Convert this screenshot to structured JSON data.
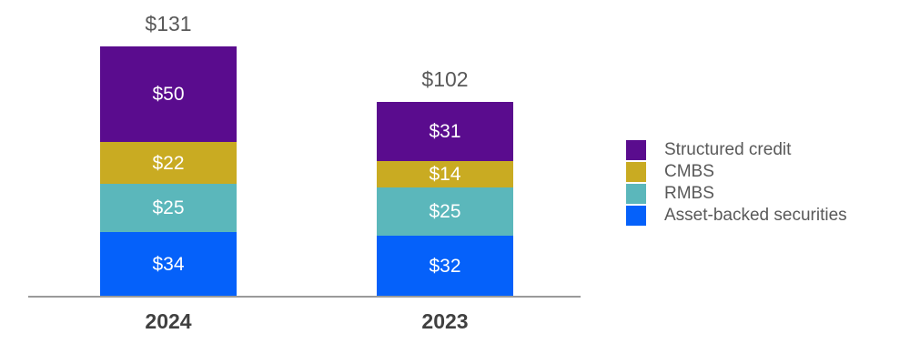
{
  "chart_data": {
    "type": "bar",
    "subtype": "stacked-vertical",
    "title": "",
    "xlabel": "",
    "ylabel": "",
    "grid": false,
    "legend_position": "right",
    "value_prefix": "$",
    "categories": [
      {
        "label": "2024",
        "total": 131,
        "total_label": "$131"
      },
      {
        "label": "2023",
        "total": 102,
        "total_label": "$102"
      }
    ],
    "series": [
      {
        "name": "Structured credit",
        "color": "#5a0c8e",
        "values": [
          50,
          31
        ],
        "value_labels": [
          "$50",
          "$31"
        ]
      },
      {
        "name": "CMBS",
        "color": "#c9ab22",
        "values": [
          22,
          14
        ],
        "value_labels": [
          "$22",
          "$14"
        ]
      },
      {
        "name": "RMBS",
        "color": "#5bb7bb",
        "values": [
          25,
          25
        ],
        "value_labels": [
          "$25",
          "$25"
        ]
      },
      {
        "name": "Asset-backed securities",
        "color": "#0561fa",
        "values": [
          34,
          32
        ],
        "value_labels": [
          "$34",
          "$32"
        ]
      }
    ],
    "axis": {
      "baseline_visible": true,
      "baseline_color": "#9a9a9a"
    },
    "palette": {
      "total_label_text": "#595959",
      "segment_label_text": "#ffffff",
      "category_label_text": "#404040",
      "legend_label_text": "#595959"
    }
  }
}
